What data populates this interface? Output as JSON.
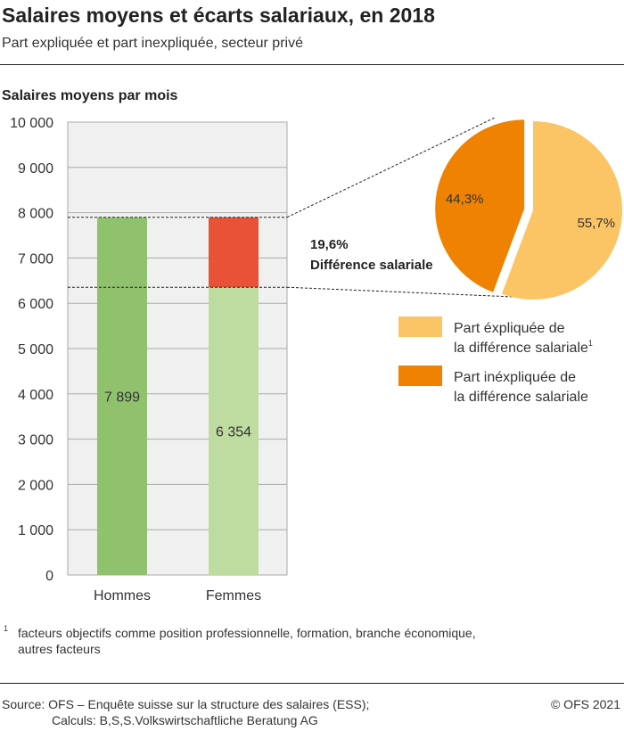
{
  "title": "Salaires moyens et écarts salariaux, en 2018",
  "subtitle": "Part expliquée et part inexpliquée, secteur privé",
  "chart_data": [
    {
      "type": "bar",
      "stacked": true,
      "ylabel": "Salaires moyens par mois",
      "ylim": [
        0,
        10000
      ],
      "yticks": [
        0,
        1000,
        2000,
        3000,
        4000,
        5000,
        6000,
        7000,
        8000,
        9000,
        10000
      ],
      "ytick_labels": [
        "0",
        "1 000",
        "2 000",
        "3 000",
        "4 000",
        "5 000",
        "6 000",
        "7 000",
        "8 000",
        "9 000",
        "10 000"
      ],
      "grid": true,
      "categories": [
        "Hommes",
        "Femmes"
      ],
      "values": [
        7899,
        6354
      ],
      "value_labels": [
        "7 899",
        "6 354"
      ],
      "gap_value": 1545,
      "colors": {
        "hommes": "#90c26e",
        "femmes": "#bedca0",
        "gap": "#e85236",
        "plot_bg": "#f0f0f0",
        "grid": "#aaaaaa"
      },
      "annotation": {
        "value": "19,6%",
        "label": "Différence salariale"
      }
    },
    {
      "type": "pie",
      "slices": [
        {
          "label": "55,7%",
          "value": 55.7,
          "color": "#fbc566"
        },
        {
          "label": "44,3%",
          "value": 44.3,
          "color": "#ef8200"
        }
      ],
      "legend": [
        {
          "label_line1": "Part éxpliquée de",
          "label_line2": "la différence salariale",
          "sup": "1",
          "color": "#fbc566"
        },
        {
          "label_line1": "Part inéxpliquée de",
          "label_line2": "la différence salariale",
          "color": "#ef8200"
        }
      ],
      "legend_placement": "bottom-right"
    }
  ],
  "footnote": {
    "mark": "1",
    "line1": "facteurs objectifs comme position professionnelle, formation, branche économique,",
    "line2": "autres facteurs"
  },
  "source": {
    "line1": "Source: OFS – Enquête suisse sur la structure des salaires (ESS);",
    "line2": "Calculs: B,S,S.Volkswirtschaftliche Beratung AG",
    "copyright": "© OFS 2021"
  }
}
